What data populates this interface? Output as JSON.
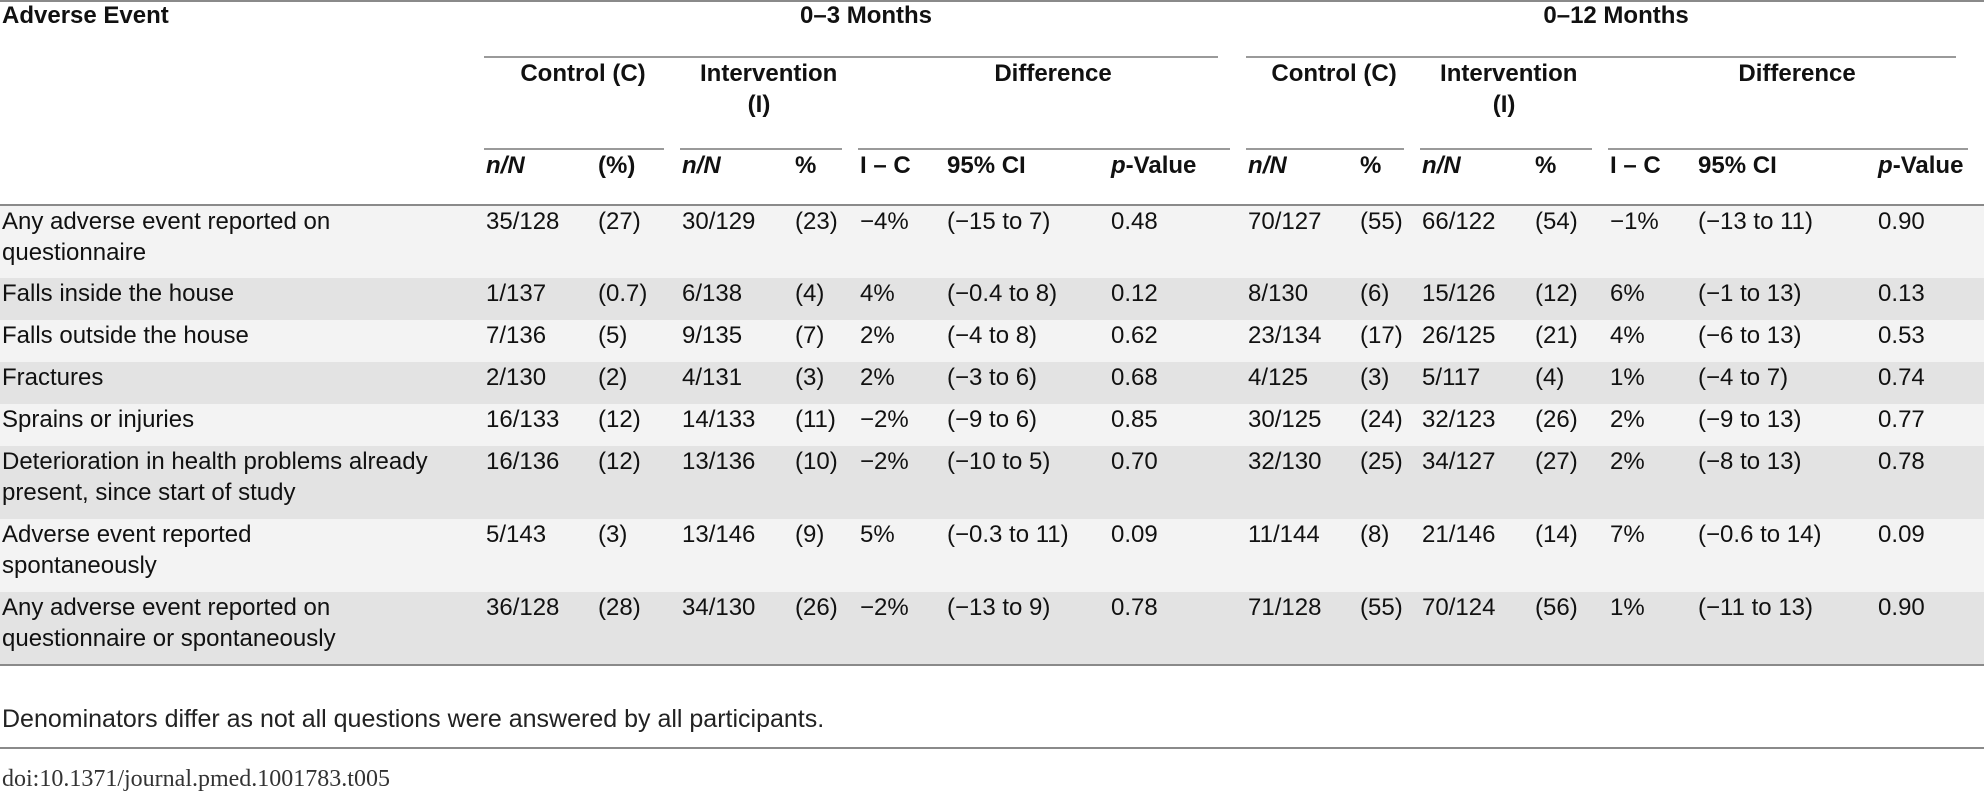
{
  "header": {
    "adverse_event": "Adverse Event",
    "period_1": "0–3 Months",
    "period_2": "0–12 Months",
    "control": "Control (C)",
    "intervention": "Intervention (I)",
    "difference": "Difference",
    "n_over_n": "n/N",
    "pct_paren": "(%)",
    "pct": "%",
    "i_minus_c": "I – C",
    "ci": "95% CI",
    "p_italic": "p",
    "p_rest": "-Value"
  },
  "rows": [
    {
      "event": "Any adverse event reported on questionnaire",
      "c3_n": "35/128",
      "c3_p": "(27)",
      "i3_n": "30/129",
      "i3_p": "(23)",
      "d3": "−4%",
      "ci3": "(−15 to 7)",
      "p3": "0.48",
      "c12_n": "70/127",
      "c12_p": "(55)",
      "i12_n": "66/122",
      "i12_p": "(54)",
      "d12": "−1%",
      "ci12": "(−13 to 11)",
      "p12": "0.90"
    },
    {
      "event": "Falls inside the house",
      "c3_n": "1/137",
      "c3_p": "(0.7)",
      "i3_n": "6/138",
      "i3_p": "(4)",
      "d3": "4%",
      "ci3": "(−0.4 to 8)",
      "p3": "0.12",
      "c12_n": "8/130",
      "c12_p": "(6)",
      "i12_n": "15/126",
      "i12_p": "(12)",
      "d12": "6%",
      "ci12": "(−1 to 13)",
      "p12": "0.13"
    },
    {
      "event": "Falls outside the house",
      "c3_n": "7/136",
      "c3_p": "(5)",
      "i3_n": "9/135",
      "i3_p": "(7)",
      "d3": "2%",
      "ci3": "(−4 to 8)",
      "p3": "0.62",
      "c12_n": "23/134",
      "c12_p": "(17)",
      "i12_n": "26/125",
      "i12_p": "(21)",
      "d12": "4%",
      "ci12": "(−6 to 13)",
      "p12": "0.53"
    },
    {
      "event": "Fractures",
      "c3_n": "2/130",
      "c3_p": "(2)",
      "i3_n": "4/131",
      "i3_p": "(3)",
      "d3": "2%",
      "ci3": "(−3 to 6)",
      "p3": "0.68",
      "c12_n": "4/125",
      "c12_p": "(3)",
      "i12_n": "5/117",
      "i12_p": "(4)",
      "d12": "1%",
      "ci12": "(−4 to 7)",
      "p12": "0.74"
    },
    {
      "event": "Sprains or injuries",
      "c3_n": "16/133",
      "c3_p": "(12)",
      "i3_n": "14/133",
      "i3_p": "(11)",
      "d3": "−2%",
      "ci3": "(−9 to 6)",
      "p3": "0.85",
      "c12_n": "30/125",
      "c12_p": "(24)",
      "i12_n": "32/123",
      "i12_p": "(26)",
      "d12": "2%",
      "ci12": "(−9 to 13)",
      "p12": "0.77"
    },
    {
      "event": "Deterioration in health problems already present, since start of study",
      "c3_n": "16/136",
      "c3_p": "(12)",
      "i3_n": "13/136",
      "i3_p": "(10)",
      "d3": "−2%",
      "ci3": "(−10 to 5)",
      "p3": "0.70",
      "c12_n": "32/130",
      "c12_p": "(25)",
      "i12_n": "34/127",
      "i12_p": "(27)",
      "d12": "2%",
      "ci12": "(−8 to 13)",
      "p12": "0.78"
    },
    {
      "event": "Adverse event reported spontaneously",
      "c3_n": "5/143",
      "c3_p": "(3)",
      "i3_n": "13/146",
      "i3_p": "(9)",
      "d3": "5%",
      "ci3": "(−0.3 to 11)",
      "p3": "0.09",
      "c12_n": "11/144",
      "c12_p": "(8)",
      "i12_n": "21/146",
      "i12_p": "(14)",
      "d12": "7%",
      "ci12": "(−0.6 to 14)",
      "p12": "0.09"
    },
    {
      "event": "Any adverse event reported on questionnaire or spontaneously",
      "c3_n": "36/128",
      "c3_p": "(28)",
      "i3_n": "34/130",
      "i3_p": "(26)",
      "d3": "−2%",
      "ci3": "(−13 to 9)",
      "p3": "0.78",
      "c12_n": "71/128",
      "c12_p": "(55)",
      "i12_n": "70/124",
      "i12_p": "(56)",
      "d12": "1%",
      "ci12": "(−11 to 13)",
      "p12": "0.90"
    }
  ],
  "footnote": "Denominators differ as not all questions were answered by all participants.",
  "doi": "doi:10.1371/journal.pmed.1001783.t005"
}
